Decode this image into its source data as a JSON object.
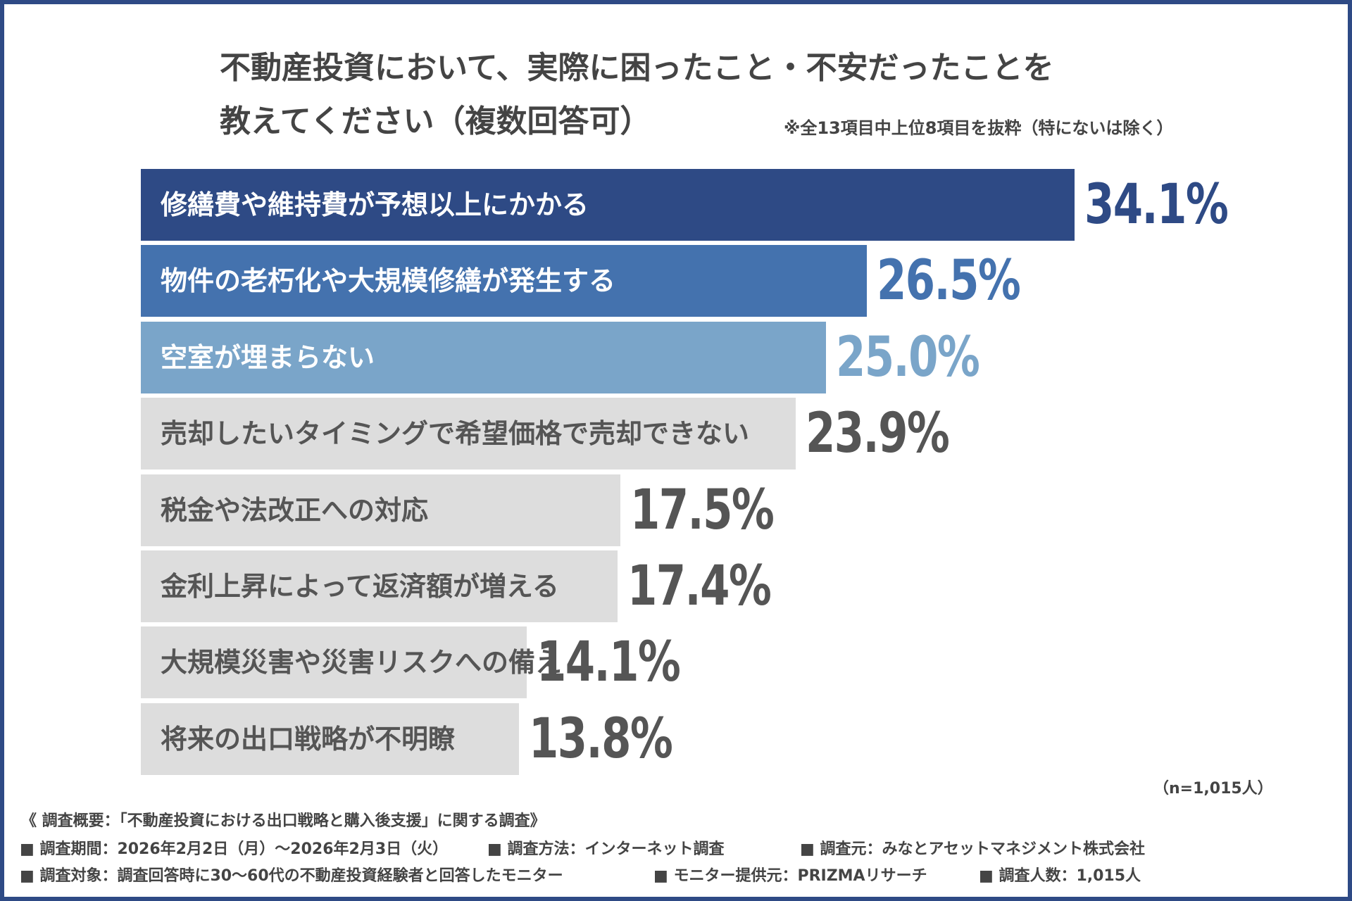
{
  "title_line1": "不動産投資において、実際に困ったこと・不安だったことを",
  "title_line2": "教えてください（複数回答可）",
  "note": "※全13項目中上位8項目を抜粋（特にないは除く）",
  "sample": "（n=1,015人）",
  "colors": {
    "frame": "#2e4a85",
    "bar1": "#2e4a85",
    "bar2": "#4472ae",
    "bar3": "#7aa5c9",
    "bar_other": "#dddddd",
    "label_other": "#555555"
  },
  "chart_data": {
    "type": "bar",
    "orientation": "horizontal",
    "categories": [
      "修繕費や維持費が予想以上にかかる",
      "物件の老朽化や大規模修繕が発生する",
      "空室が埋まらない",
      "売却したいタイミングで希望価格で売却できない",
      "税金や法改正への対応",
      "金利上昇によって返済額が増える",
      "大規模災害や災害リスクへの備え",
      "将来の出口戦略が不明瞭"
    ],
    "values": [
      34.1,
      26.5,
      25.0,
      23.9,
      17.5,
      17.4,
      14.1,
      13.8
    ],
    "value_labels": [
      "34.1%",
      "26.5%",
      "25.0%",
      "23.9%",
      "17.5%",
      "17.4%",
      "14.1%",
      "13.8%"
    ],
    "unit": "%"
  },
  "footer": {
    "heading": "《 調査概要：「不動産投資における出口戦略と購入後支援」に関する調査》",
    "row1": [
      "■ 調査期間：2026年2月2日（月）〜2026年2月3日（火）",
      "■ 調査方法：インターネット調査",
      "■ 調査元：みなとアセットマネジメント株式会社"
    ],
    "row2": [
      "■ 調査対象：調査回答時に30〜60代の不動産投資経験者と回答したモニター",
      "■ モニター提供元：PRIZMAリサーチ",
      "■ 調査人数：1,015人"
    ]
  }
}
